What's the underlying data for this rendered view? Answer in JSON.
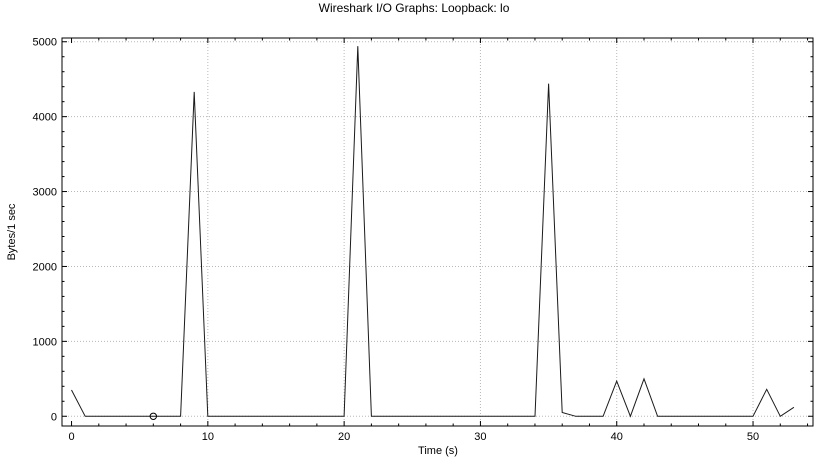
{
  "window": {
    "title": "Wireshark I/O Graphs: Loopback: lo"
  },
  "chart_data": {
    "type": "line",
    "title": "Wireshark I/O Graphs: Loopback: lo",
    "xlabel": "Time (s)",
    "ylabel": "Bytes/1 sec",
    "xlim": [
      -0.7,
      54.4
    ],
    "ylim": [
      -130,
      5050
    ],
    "x_ticks": [
      0,
      10,
      20,
      30,
      40,
      50
    ],
    "y_ticks": [
      0,
      1000,
      2000,
      3000,
      4000,
      5000
    ],
    "grid": true,
    "series": [
      {
        "color": "#1a1a1a",
        "x": [
          0,
          1,
          2,
          3,
          4,
          5,
          6,
          7,
          8,
          9,
          10,
          11,
          12,
          13,
          14,
          15,
          16,
          17,
          18,
          19,
          20,
          21,
          22,
          23,
          24,
          25,
          26,
          27,
          28,
          29,
          30,
          31,
          32,
          33,
          34,
          35,
          36,
          37,
          38,
          39,
          40,
          41,
          42,
          43,
          44,
          45,
          46,
          47,
          48,
          49,
          50,
          51,
          52,
          53
        ],
        "y": [
          350,
          0,
          0,
          0,
          0,
          0,
          0,
          0,
          0,
          4330,
          0,
          0,
          0,
          0,
          0,
          0,
          0,
          0,
          0,
          0,
          0,
          4940,
          0,
          0,
          0,
          0,
          0,
          0,
          0,
          0,
          0,
          0,
          0,
          0,
          0,
          4440,
          50,
          0,
          0,
          0,
          470,
          0,
          500,
          0,
          0,
          0,
          0,
          0,
          0,
          0,
          0,
          360,
          0,
          120
        ]
      }
    ],
    "markers": [
      {
        "shape": "circle",
        "x": 6,
        "y": 0
      }
    ]
  }
}
